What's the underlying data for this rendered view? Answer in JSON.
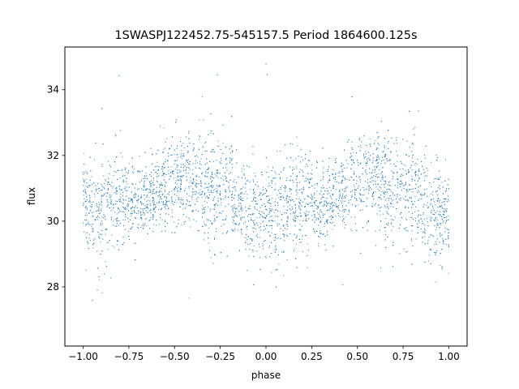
{
  "chart_data": {
    "type": "scatter",
    "title": "1SWASPJ122452.75-545157.5 Period 1864600.125s",
    "xlabel": "phase",
    "ylabel": "flux",
    "xlim": [
      -1.1,
      1.1
    ],
    "ylim": [
      26.2,
      35.3
    ],
    "x_ticks": [
      -1.0,
      -0.75,
      -0.5,
      -0.25,
      0.0,
      0.25,
      0.5,
      0.75,
      1.0
    ],
    "x_tick_labels": [
      "−1.00",
      "−0.75",
      "−0.50",
      "−0.25",
      "0.00",
      "0.25",
      "0.50",
      "0.75",
      "1.00"
    ],
    "y_ticks": [
      28,
      30,
      32,
      34
    ],
    "y_tick_labels": [
      "28",
      "30",
      "32",
      "34"
    ],
    "grid": false,
    "marker_color": "#1f77b4",
    "folded_period_in_phase": 1.0,
    "series": [
      {
        "phase": [
          -1.0,
          -0.95,
          -0.9,
          -0.85,
          -0.8,
          -0.75,
          -0.7,
          -0.65,
          -0.6,
          -0.55,
          -0.5,
          -0.45,
          -0.4,
          -0.35,
          -0.3,
          -0.25,
          -0.2,
          -0.15,
          -0.1,
          -0.05,
          0.0
        ],
        "flux_center": [
          30.4,
          30.2,
          30.3,
          30.6,
          30.7,
          30.6,
          30.5,
          30.6,
          30.9,
          31.0,
          31.2,
          31.4,
          31.3,
          31.0,
          30.8,
          30.9,
          31.0,
          30.6,
          30.3,
          30.2,
          30.1
        ],
        "flux_spread": [
          1.2,
          1.4,
          1.4,
          1.3,
          1.3,
          1.1,
          1.0,
          1.0,
          1.0,
          1.2,
          1.2,
          1.1,
          1.1,
          1.3,
          1.4,
          1.4,
          1.3,
          1.2,
          1.2,
          1.3,
          1.3
        ]
      }
    ]
  }
}
